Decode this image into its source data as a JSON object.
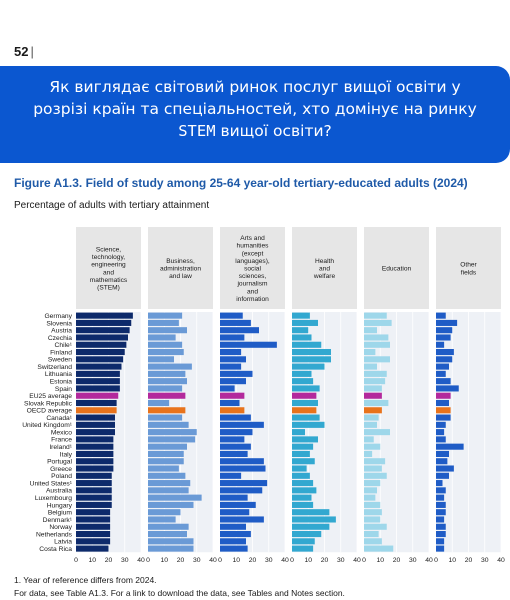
{
  "page": {
    "number": "52",
    "separator": "|"
  },
  "banner": {
    "line1": "Як виглядає світовий ринок послуг вищої освіти у",
    "line2": "розрізі країн та спеціальностей, хто домінує на ринку",
    "line3_stem": "STEM",
    "line3_rest": " вищої освіти?"
  },
  "figure": {
    "title": "Figure A1.3. Field of study among 25-64 year-old tertiary-educated adults (2024)",
    "subtitle": "Percentage of adults with tertiary attainment"
  },
  "footnotes": {
    "note1": "1. Year of reference differs from 2024.",
    "note2": "For data, see Table A1.3. For a link to download the data, see Tables and Notes section."
  },
  "chart_data": {
    "type": "bar",
    "orientation": "horizontal",
    "grid": true,
    "xlim": [
      0,
      40
    ],
    "xticks": [
      0,
      10,
      20,
      30,
      40
    ],
    "categories": [
      "Germany",
      "Slovenia",
      "Austria",
      "Czechia",
      "Chile¹",
      "Finland",
      "Sweden",
      "Switzerland",
      "Lithuania",
      "Estonia",
      "Spain",
      "EU25 average",
      "Slovak Republic",
      "OECD average",
      "Canada¹",
      "United Kingdom¹",
      "Mexico",
      "France",
      "Ireland¹",
      "Italy",
      "Portugal",
      "Greece",
      "Poland",
      "United States¹",
      "Australia",
      "Luxembourg",
      "Hungary",
      "Belgium",
      "Denmark¹",
      "Norway",
      "Netherlands",
      "Latvia",
      "Costa Rica"
    ],
    "highlighted": [
      "EU25 average",
      "OECD average"
    ],
    "highlight_colors": {
      "EU25 average": "#b3299c",
      "OECD average": "#e8731c"
    },
    "series": [
      {
        "name": "Science, technology, engineering and mathematics (STEM)",
        "color": "#0d2a6b",
        "values": [
          35,
          34,
          33,
          32,
          31,
          30,
          29,
          28,
          27,
          27,
          27,
          26,
          25,
          25,
          24,
          24,
          24,
          23,
          23,
          23,
          23,
          23,
          22,
          22,
          22,
          22,
          22,
          21,
          21,
          21,
          21,
          21,
          20
        ]
      },
      {
        "name": "Business, administration and law",
        "color": "#6a9ad6",
        "values": [
          21,
          19,
          24,
          17,
          21,
          22,
          16,
          27,
          23,
          24,
          21,
          23,
          13,
          23,
          21,
          25,
          30,
          29,
          24,
          22,
          22,
          19,
          23,
          26,
          25,
          33,
          28,
          20,
          17,
          25,
          24,
          28,
          28
        ]
      },
      {
        "name": "Arts and humanities (except languages), social sciences, journalism and information",
        "color": "#1f5cc6",
        "values": [
          14,
          19,
          24,
          15,
          35,
          13,
          16,
          13,
          20,
          16,
          9,
          15,
          12,
          15,
          19,
          27,
          20,
          15,
          19,
          17,
          27,
          28,
          13,
          29,
          26,
          17,
          22,
          18,
          27,
          16,
          19,
          16,
          17
        ]
      },
      {
        "name": "Health and welfare",
        "color": "#32a8d0",
        "values": [
          11,
          16,
          10,
          12,
          18,
          24,
          24,
          20,
          12,
          13,
          17,
          15,
          16,
          15,
          17,
          20,
          8,
          16,
          13,
          11,
          14,
          9,
          11,
          13,
          15,
          12,
          13,
          23,
          27,
          23,
          18,
          14,
          13
        ]
      },
      {
        "name": "Education",
        "color": "#9ed7ea",
        "values": [
          14,
          17,
          8,
          15,
          16,
          7,
          16,
          8,
          14,
          13,
          11,
          11,
          15,
          11,
          9,
          8,
          16,
          6,
          10,
          5,
          13,
          11,
          14,
          10,
          8,
          7,
          10,
          11,
          10,
          14,
          9,
          11,
          18
        ]
      },
      {
        "name": "Other fields",
        "color": "#1f5cc6",
        "values": [
          6,
          13,
          10,
          9,
          5,
          11,
          10,
          8,
          6,
          9,
          14,
          9,
          8,
          9,
          9,
          6,
          5,
          6,
          17,
          8,
          7,
          11,
          8,
          4,
          6,
          5,
          6,
          6,
          5,
          6,
          6,
          5,
          5
        ]
      }
    ],
    "panel_labels": [
      [
        "Science,",
        "technology,",
        "engineering",
        "and",
        "mathematics",
        "(STEM)"
      ],
      [
        "Business,",
        "administration",
        "and law"
      ],
      [
        "Arts and",
        "humanities",
        "(except",
        "languages),",
        "social",
        "sciences,",
        "journalism",
        "and",
        "information"
      ],
      [
        "Health",
        "and",
        "welfare"
      ],
      [
        "Education"
      ],
      [
        "Other",
        "fields"
      ]
    ]
  }
}
